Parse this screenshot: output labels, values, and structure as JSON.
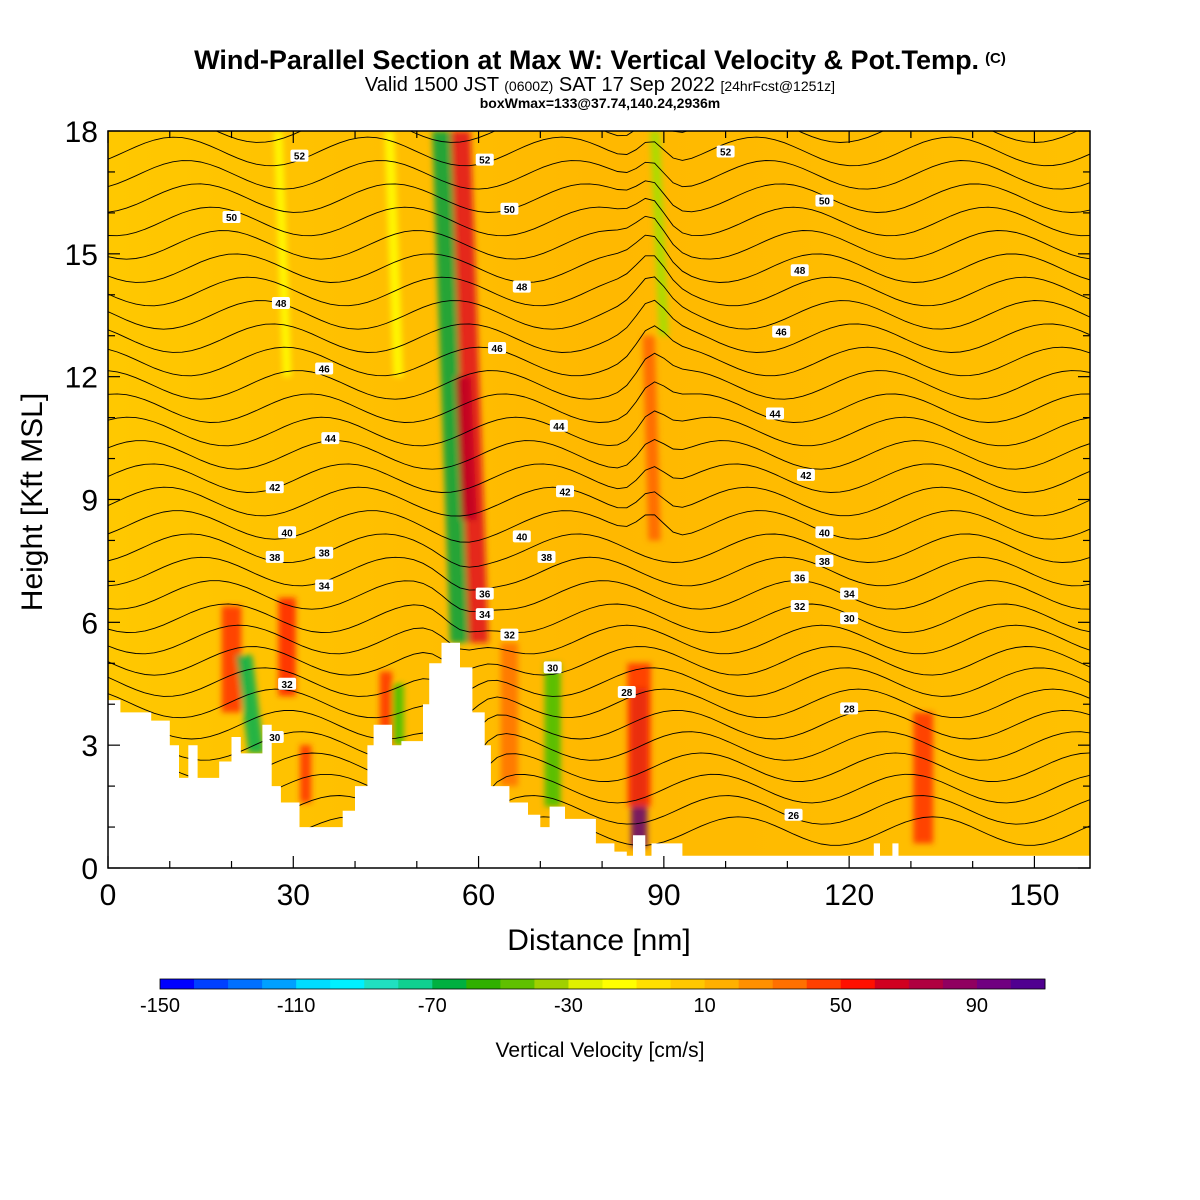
{
  "header": {
    "title": "Wind-Parallel Section at Max W: Vertical Velocity & Pot.Temp.",
    "copyright": "(C)",
    "valid_prefix": "Valid 1500 JST",
    "valid_utc": "(0600Z)",
    "valid_date": "SAT 17 Sep 2022",
    "forecast": "[24hrFcst@1251z]",
    "boxw": "boxWmax=133@37.74,140.24,2936m"
  },
  "chart_data": {
    "type": "heatmap",
    "xlabel": "Distance [nm]",
    "ylabel": "Height [Kft MSL]",
    "xlim": [
      0,
      159
    ],
    "ylim": [
      0,
      18
    ],
    "x_ticks": [
      "0",
      "30",
      "60",
      "90",
      "120",
      "150"
    ],
    "y_ticks": [
      "0",
      "3",
      "6",
      "9",
      "12",
      "15",
      "18"
    ],
    "fill_variable": "Vertical Velocity [cm/s]",
    "contour_variable": "Potential temperature (C)",
    "colorbar": {
      "title": "Vertical Velocity [cm/s]",
      "min": -150,
      "max": 110,
      "step": 10,
      "tick_labels": [
        "-150",
        "-110",
        "-70",
        "-30",
        "10",
        "50",
        "90"
      ],
      "colors": [
        "#0000ff",
        "#0040ff",
        "#0070ff",
        "#00a0ff",
        "#00dcff",
        "#00f0ff",
        "#20e0c0",
        "#10d090",
        "#00b040",
        "#30b000",
        "#60c000",
        "#a0d000",
        "#e0f000",
        "#ffff00",
        "#ffe000",
        "#ffc800",
        "#ffb000",
        "#ff9000",
        "#ff7000",
        "#ff4000",
        "#ff1000",
        "#d00020",
        "#b00040",
        "#900060",
        "#700080",
        "#500090"
      ]
    },
    "contour_labels": [
      {
        "text": "52",
        "x": 31,
        "y": 17.4
      },
      {
        "text": "52",
        "x": 61,
        "y": 17.3
      },
      {
        "text": "52",
        "x": 100,
        "y": 17.5
      },
      {
        "text": "50",
        "x": 20,
        "y": 15.9
      },
      {
        "text": "50",
        "x": 65,
        "y": 16.1
      },
      {
        "text": "50",
        "x": 116,
        "y": 16.3
      },
      {
        "text": "48",
        "x": 28,
        "y": 13.8
      },
      {
        "text": "48",
        "x": 67,
        "y": 14.2
      },
      {
        "text": "48",
        "x": 112,
        "y": 14.6
      },
      {
        "text": "46",
        "x": 35,
        "y": 12.2
      },
      {
        "text": "46",
        "x": 63,
        "y": 12.7
      },
      {
        "text": "46",
        "x": 109,
        "y": 13.1
      },
      {
        "text": "44",
        "x": 36,
        "y": 10.5
      },
      {
        "text": "44",
        "x": 73,
        "y": 10.8
      },
      {
        "text": "44",
        "x": 108,
        "y": 11.1
      },
      {
        "text": "42",
        "x": 27,
        "y": 9.3
      },
      {
        "text": "42",
        "x": 74,
        "y": 9.2
      },
      {
        "text": "42",
        "x": 113,
        "y": 9.6
      },
      {
        "text": "40",
        "x": 29,
        "y": 8.2
      },
      {
        "text": "40",
        "x": 67,
        "y": 8.1
      },
      {
        "text": "40",
        "x": 116,
        "y": 8.2
      },
      {
        "text": "38",
        "x": 27,
        "y": 7.6
      },
      {
        "text": "38",
        "x": 35,
        "y": 7.7
      },
      {
        "text": "38",
        "x": 71,
        "y": 7.6
      },
      {
        "text": "38",
        "x": 116,
        "y": 7.5
      },
      {
        "text": "36",
        "x": 61,
        "y": 6.7
      },
      {
        "text": "36",
        "x": 112,
        "y": 7.1
      },
      {
        "text": "34",
        "x": 35,
        "y": 6.9
      },
      {
        "text": "34",
        "x": 61,
        "y": 6.2
      },
      {
        "text": "34",
        "x": 120,
        "y": 6.7
      },
      {
        "text": "32",
        "x": 65,
        "y": 5.7
      },
      {
        "text": "32",
        "x": 112,
        "y": 6.4
      },
      {
        "text": "32",
        "x": 29,
        "y": 4.5
      },
      {
        "text": "30",
        "x": 72,
        "y": 4.9
      },
      {
        "text": "30",
        "x": 120,
        "y": 6.1
      },
      {
        "text": "30",
        "x": 27,
        "y": 3.2
      },
      {
        "text": "28",
        "x": 84,
        "y": 4.3
      },
      {
        "text": "28",
        "x": 120,
        "y": 3.9
      },
      {
        "text": "26",
        "x": 111,
        "y": 1.3
      }
    ]
  }
}
